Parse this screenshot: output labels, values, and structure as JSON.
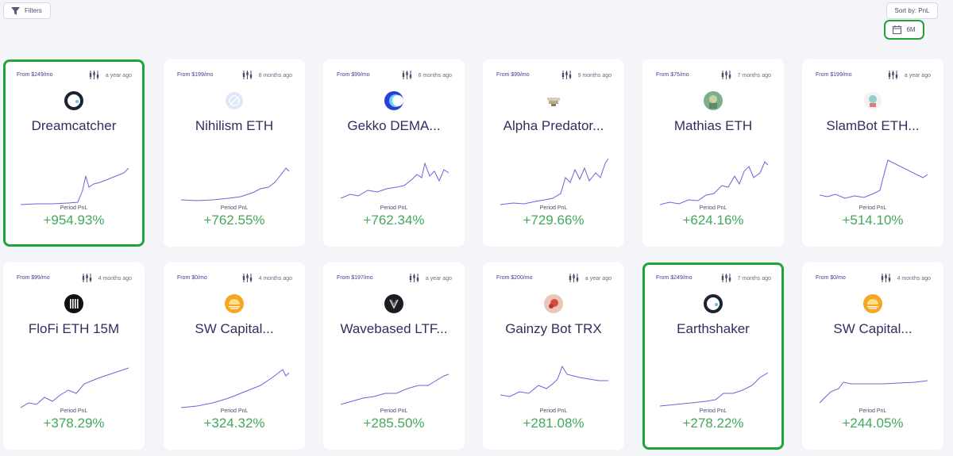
{
  "toolbar": {
    "filters_label": "Filters",
    "sort_label": "Sort by: PnL",
    "period_label": "6M"
  },
  "pnl_caption": "Period PnL",
  "colors": {
    "accent_green": "#22a33a",
    "pnl_green": "#43a85a",
    "line": "#6b63d6"
  },
  "cards": [
    {
      "price": "From $249/mo",
      "age": "a year ago",
      "name": "Dreamcatcher",
      "pnl": "+954.93%",
      "icon": "dreamcatcher-logo-icon"
    },
    {
      "price": "From $199/mo",
      "age": "8 months ago",
      "name": "Nihilism ETH",
      "pnl": "+762.55%",
      "icon": "nihilism-logo-icon"
    },
    {
      "price": "From $99/mo",
      "age": "6 months ago",
      "name": "Gekko DEMA...",
      "pnl": "+762.34%",
      "icon": "gekko-logo-icon"
    },
    {
      "price": "From $99/mo",
      "age": "9 months ago",
      "name": "Alpha Predator...",
      "pnl": "+729.66%",
      "icon": "alpha-predator-logo-icon"
    },
    {
      "price": "From $75/mo",
      "age": "7 months ago",
      "name": "Mathias ETH",
      "pnl": "+624.16%",
      "icon": "mathias-logo-icon"
    },
    {
      "price": "From $199/mo",
      "age": "a year ago",
      "name": "SlamBot ETH...",
      "pnl": "+514.10%",
      "icon": "slambot-logo-icon"
    },
    {
      "price": "From $99/mo",
      "age": "4 months ago",
      "name": "FloFi ETH 15M",
      "pnl": "+378.29%",
      "icon": "flofi-logo-icon"
    },
    {
      "price": "From $0/mo",
      "age": "4 months ago",
      "name": "SW Capital...",
      "pnl": "+324.32%",
      "icon": "sw-capital-logo-icon"
    },
    {
      "price": "From $197/mo",
      "age": "a year ago",
      "name": "Wavebased LTF...",
      "pnl": "+285.50%",
      "icon": "wavebased-logo-icon"
    },
    {
      "price": "From $200/mo",
      "age": "a year ago",
      "name": "Gainzy Bot TRX",
      "pnl": "+281.08%",
      "icon": "gainzy-logo-icon"
    },
    {
      "price": "From $249/mo",
      "age": "7 months ago",
      "name": "Earthshaker",
      "pnl": "+278.22%",
      "icon": "earthshaker-logo-icon"
    },
    {
      "price": "From $0/mo",
      "age": "4 months ago",
      "name": "SW Capital...",
      "pnl": "+244.05%",
      "icon": "sw-capital-logo-icon"
    }
  ]
}
